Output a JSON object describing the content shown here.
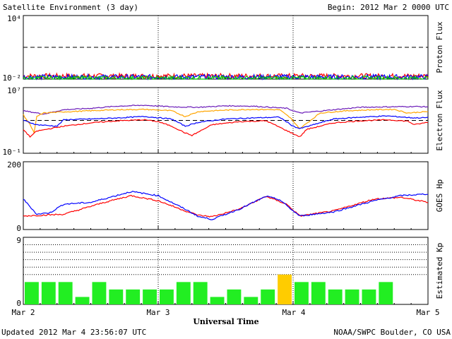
{
  "header": {
    "title": "Satellite Environment (3 day)",
    "begin": "Begin:  2012 Mar 2 0000 UTC"
  },
  "footer": {
    "updated": "Updated 2012 Mar  4 23:56:07 UTC",
    "credit": "NOAA/SWPC Boulder, CO USA"
  },
  "chart_data": [
    {
      "type": "line",
      "ylabel": "Proton Flux",
      "yscale": "log",
      "ylim": [
        0.01,
        10000
      ],
      "ytick_labels": [
        "10⁴",
        "10⁻²"
      ],
      "threshold": 10,
      "series": [
        {
          "color": "#ff0000",
          "base": 0.02
        },
        {
          "color": "#0000ff",
          "base": 0.016
        },
        {
          "color": "#00cc00",
          "base": 0.012
        }
      ]
    },
    {
      "type": "line",
      "ylabel": "Electron Flux",
      "yscale": "log",
      "ylim": [
        0.1,
        10000000
      ],
      "ytick_labels": [
        "10⁷",
        "10⁻¹"
      ],
      "threshold": 1000,
      "series": [
        {
          "color": "#6a1ab8",
          "x": [
            0,
            0.15,
            0.3,
            0.5,
            0.7,
            0.9,
            1.1,
            1.3,
            1.5,
            1.7,
            1.95,
            2.05,
            2.3,
            2.5,
            2.7,
            2.9,
            3.0
          ],
          "y": [
            15000,
            6000,
            20000,
            30000,
            55000,
            70000,
            45000,
            40000,
            60000,
            55000,
            30000,
            8000,
            20000,
            40000,
            45000,
            50000,
            45000
          ]
        },
        {
          "color": "#ffa500",
          "x": [
            0,
            0.05,
            0.08,
            0.1,
            0.15,
            0.3,
            0.5,
            0.7,
            0.9,
            1.1,
            1.2,
            1.3,
            1.5,
            1.7,
            1.9,
            1.98,
            2.05,
            2.2,
            2.4,
            2.6,
            2.75,
            2.85,
            3.0
          ],
          "y": [
            5000,
            300,
            30,
            3000,
            8000,
            11000,
            15000,
            20000,
            22000,
            15000,
            3000,
            12000,
            18000,
            22000,
            20000,
            2000,
            100,
            8000,
            15000,
            20000,
            22000,
            8000,
            12000
          ]
        },
        {
          "color": "#0000ff",
          "x": [
            0,
            0.1,
            0.25,
            0.3,
            0.5,
            0.7,
            0.9,
            1.1,
            1.2,
            1.3,
            1.5,
            1.7,
            1.9,
            2.0,
            2.05,
            2.3,
            2.5,
            2.7,
            2.9,
            3.0
          ],
          "y": [
            1000,
            300,
            200,
            1200,
            1500,
            2000,
            3000,
            1500,
            200,
            600,
            1500,
            2000,
            2500,
            200,
            100,
            1500,
            2500,
            3500,
            2000,
            2200
          ]
        },
        {
          "color": "#ff0000",
          "x": [
            0,
            0.05,
            0.1,
            0.3,
            0.5,
            0.7,
            0.9,
            1.0,
            1.1,
            1.2,
            1.25,
            1.4,
            1.6,
            1.8,
            1.95,
            2.05,
            2.1,
            2.3,
            2.5,
            2.7,
            2.85,
            2.9,
            3.0
          ],
          "y": [
            80,
            10,
            50,
            200,
            500,
            900,
            1200,
            700,
            200,
            30,
            15,
            300,
            700,
            900,
            60,
            10,
            80,
            500,
            900,
            1200,
            800,
            300,
            600
          ]
        }
      ]
    },
    {
      "type": "line",
      "ylabel": "GOES Hp",
      "ylim": [
        0,
        200
      ],
      "yticks": [
        0,
        200
      ],
      "series": [
        {
          "color": "#ff0000",
          "x": [
            0,
            0.3,
            0.6,
            0.8,
            1.0,
            1.2,
            1.3,
            1.4,
            1.6,
            1.8,
            1.95,
            2.05,
            2.3,
            2.6,
            2.8,
            3.0
          ],
          "y": [
            40,
            45,
            80,
            100,
            85,
            55,
            42,
            38,
            60,
            98,
            75,
            40,
            55,
            90,
            95,
            80
          ]
        },
        {
          "color": "#0000ff",
          "x": [
            0,
            0.1,
            0.2,
            0.3,
            0.5,
            0.8,
            1.0,
            1.2,
            1.3,
            1.4,
            1.6,
            1.8,
            1.9,
            2.0,
            2.05,
            2.3,
            2.6,
            2.8,
            3.0
          ],
          "y": [
            90,
            45,
            50,
            75,
            80,
            112,
            100,
            60,
            38,
            30,
            60,
            98,
            88,
            55,
            40,
            52,
            85,
            100,
            105
          ]
        }
      ]
    },
    {
      "type": "bar",
      "ylabel": "Estimated Kp",
      "ylim": [
        0,
        9
      ],
      "yticks": [
        0,
        9
      ],
      "gridlines": [
        4,
        5,
        6,
        7,
        8,
        9
      ],
      "values": [
        3,
        3,
        3,
        1,
        3,
        2,
        2,
        2,
        2,
        3,
        3,
        1,
        2,
        1,
        2,
        4,
        3,
        3,
        2,
        2,
        2,
        3,
        0,
        0
      ],
      "colors": {
        "normal": "#22ee22",
        "elevated": "#ffcc00"
      },
      "xlabel": "Universal Time",
      "xticks": [
        "Mar 2",
        "Mar 3",
        "Mar 4",
        "Mar 5"
      ]
    }
  ]
}
